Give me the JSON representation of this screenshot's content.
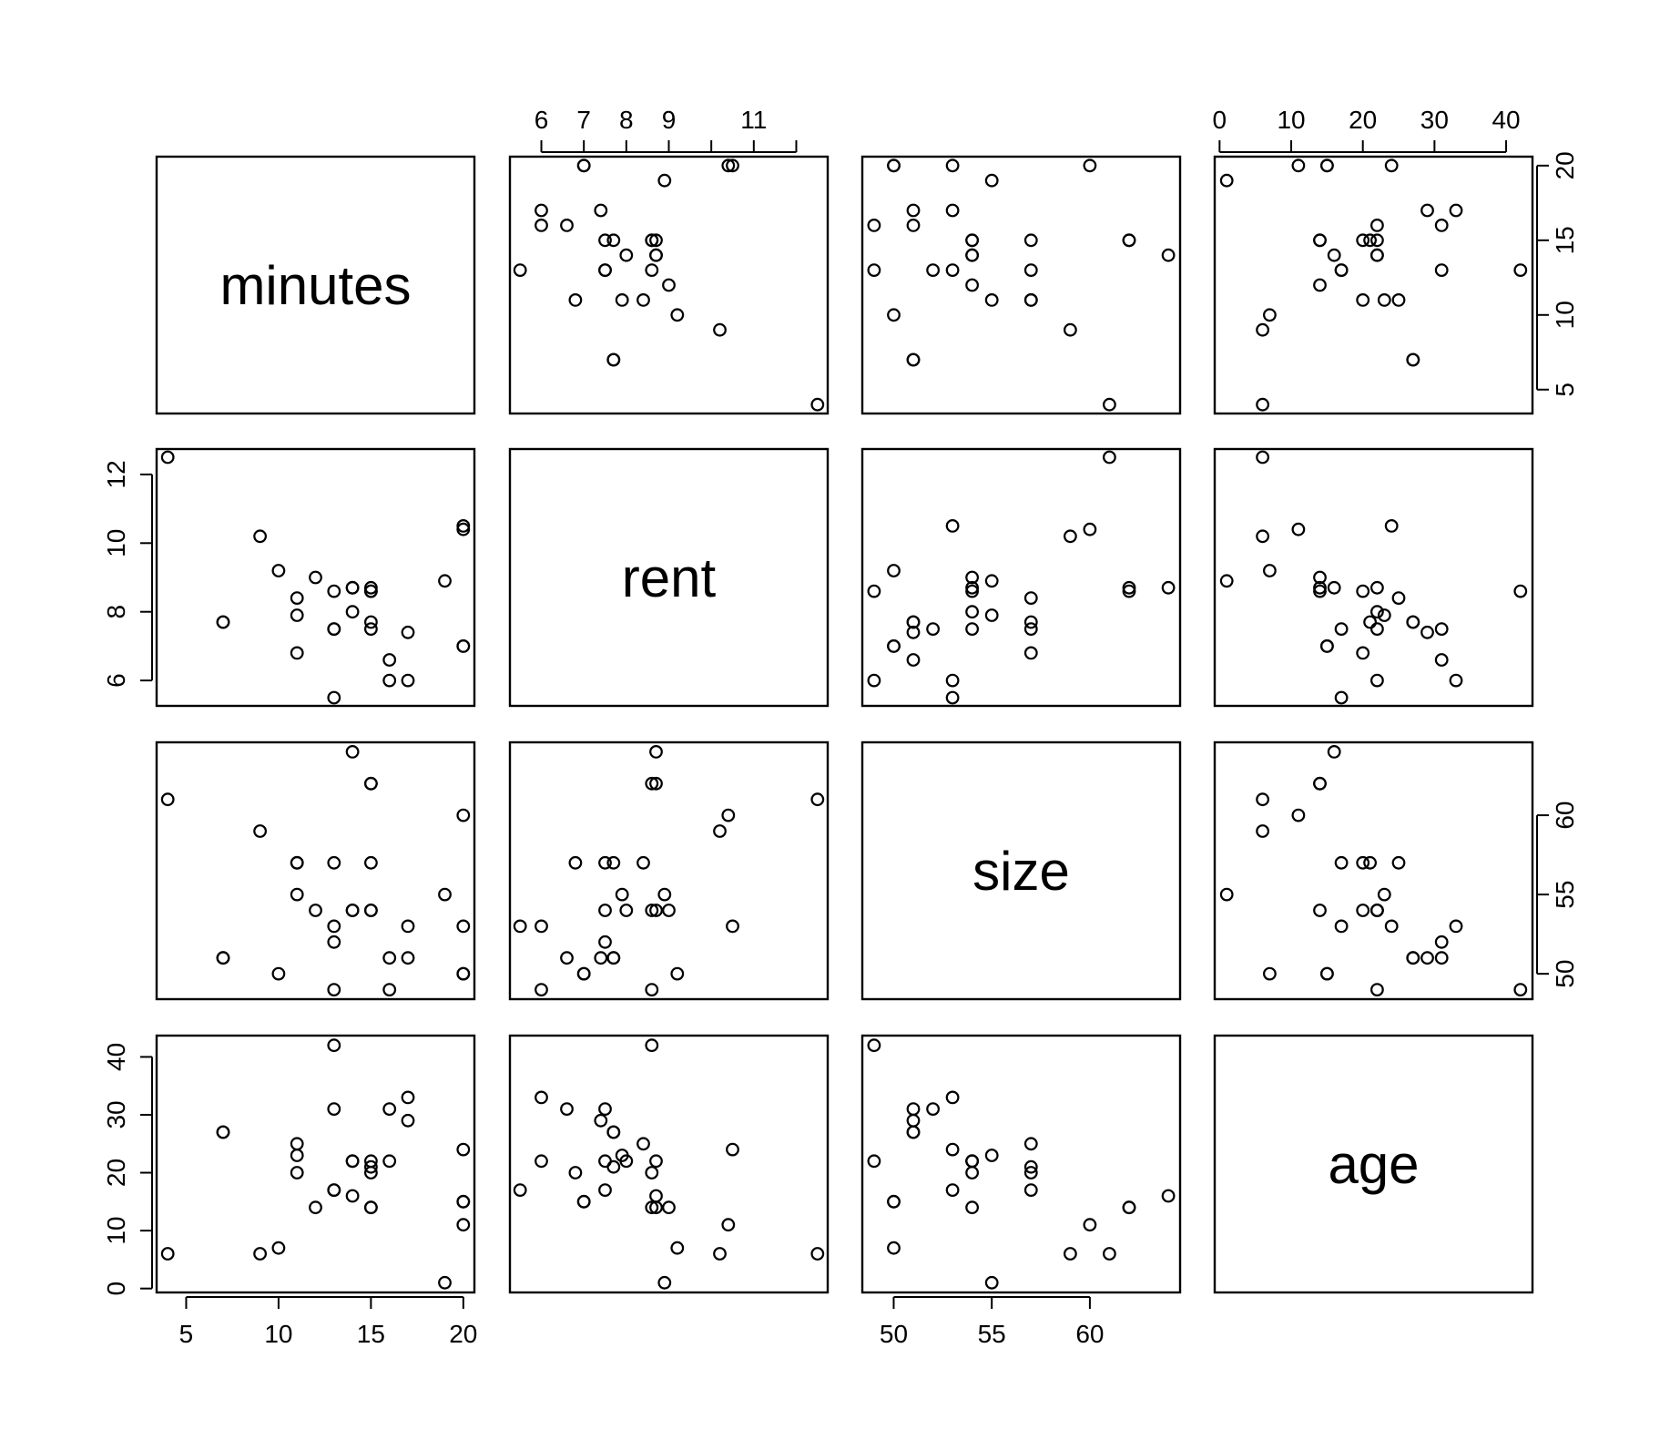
{
  "chart_data": {
    "type": "scatter",
    "subtype": "pairs-matrix",
    "variables": [
      "minutes",
      "rent",
      "size",
      "age"
    ],
    "observations": {
      "minutes": [
        4,
        7,
        7,
        9,
        10,
        11,
        11,
        11,
        12,
        13,
        13,
        13,
        13,
        14,
        14,
        14,
        15,
        15,
        15,
        15,
        15,
        16,
        16,
        17,
        17,
        19,
        20,
        20,
        20,
        20
      ],
      "rent": [
        12.5,
        7.7,
        7.7,
        10.2,
        9.2,
        8.4,
        7.9,
        6.8,
        9.0,
        8.6,
        7.5,
        7.5,
        5.5,
        8.7,
        8.0,
        8.7,
        8.6,
        8.7,
        7.7,
        7.5,
        8.6,
        6.6,
        6.0,
        7.4,
        6.0,
        8.9,
        10.4,
        10.5,
        7.0,
        7.0
      ],
      "size": [
        61,
        51,
        51,
        59,
        50,
        57,
        55,
        57,
        54,
        49,
        52,
        57,
        53,
        64,
        54,
        54,
        62,
        62,
        57,
        54,
        54,
        51,
        49,
        51,
        53,
        55,
        60,
        53,
        50,
        50
      ],
      "age": [
        6,
        27,
        27,
        6,
        7,
        25,
        23,
        20,
        14,
        42,
        31,
        17,
        17,
        16,
        22,
        22,
        14,
        14,
        21,
        22,
        20,
        31,
        22,
        29,
        33,
        1,
        11,
        24,
        15,
        15
      ]
    },
    "axes": {
      "minutes": {
        "ticks": [
          5,
          10,
          15,
          20
        ],
        "range": [
          3.4,
          20.6
        ]
      },
      "rent": {
        "ticks": [
          6,
          7,
          8,
          9,
          10,
          11,
          12
        ],
        "tick_labels": [
          "6",
          "7",
          "8",
          "9",
          "",
          "11",
          ""
        ],
        "axis_ticks": [
          6,
          8,
          10,
          12
        ],
        "range": [
          5.26,
          12.74
        ]
      },
      "size": {
        "ticks": [
          50,
          55,
          60
        ],
        "range": [
          48.4,
          64.6
        ]
      },
      "age": {
        "ticks": [
          0,
          10,
          20,
          30,
          40
        ],
        "range": [
          -0.68,
          43.68
        ]
      }
    },
    "title": "",
    "grid": false,
    "legend": "none"
  }
}
